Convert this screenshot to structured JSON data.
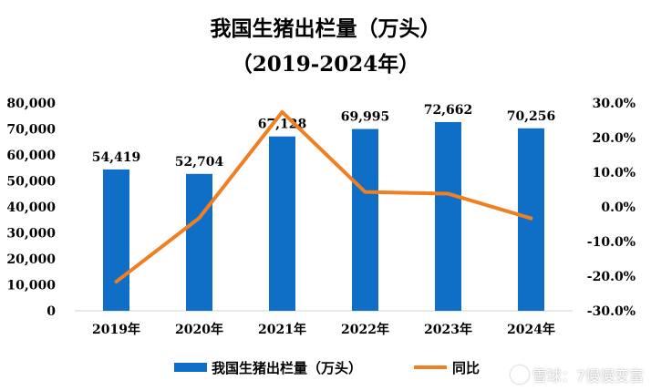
{
  "chart_data": {
    "type": "bar",
    "title": "我国生猪出栏量（万头）",
    "subtitle": "（2019-2024年）",
    "categories": [
      "2019年",
      "2020年",
      "2021年",
      "2022年",
      "2023年",
      "2024年"
    ],
    "series": [
      {
        "name": "我国生猪出栏量（万头）",
        "type": "bar",
        "axis": "left",
        "values": [
          54419,
          52704,
          67128,
          69995,
          72662,
          70256
        ],
        "labels": [
          "54,419",
          "52,704",
          "67,128",
          "69,995",
          "72,662",
          "70,256"
        ],
        "color": "#0f6fc6"
      },
      {
        "name": "同比",
        "type": "line",
        "axis": "right",
        "values": [
          -21.6,
          -3.2,
          27.4,
          4.3,
          3.8,
          -3.3
        ],
        "color": "#f07f22"
      }
    ],
    "y_left": {
      "range": [
        0,
        80000
      ],
      "ticks": [
        {
          "v": 80000,
          "label": "80,000"
        },
        {
          "v": 70000,
          "label": "70,000"
        },
        {
          "v": 60000,
          "label": "60,000"
        },
        {
          "v": 50000,
          "label": "50,000"
        },
        {
          "v": 40000,
          "label": "40,000"
        },
        {
          "v": 30000,
          "label": "30,000"
        },
        {
          "v": 20000,
          "label": "20,000"
        },
        {
          "v": 10000,
          "label": "10,000"
        },
        {
          "v": 0,
          "label": "0"
        }
      ]
    },
    "y_right": {
      "range": [
        -30,
        30
      ],
      "ticks": [
        {
          "v": 30,
          "label": "30.0%"
        },
        {
          "v": 20,
          "label": "20.0%"
        },
        {
          "v": 10,
          "label": "10.0%"
        },
        {
          "v": 0,
          "label": "0.0%"
        },
        {
          "v": -10,
          "label": "-10.0%"
        },
        {
          "v": -20,
          "label": "-20.0%"
        },
        {
          "v": -30,
          "label": "-30.0%"
        }
      ]
    },
    "grid": false,
    "legend_position": "bottom"
  },
  "watermark": {
    "text": "雪球：7慢慢变富",
    "icon": "snowball-logo-icon"
  }
}
